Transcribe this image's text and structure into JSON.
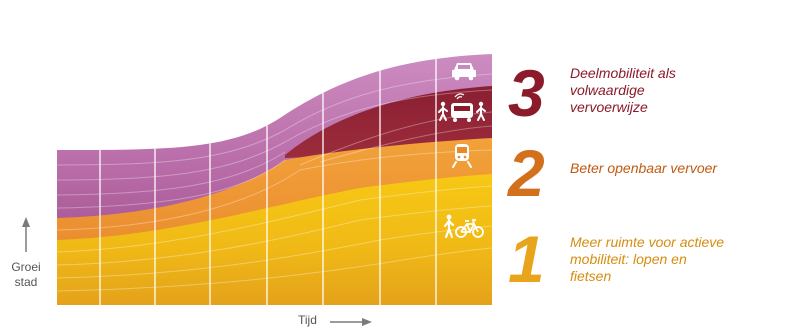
{
  "axes": {
    "y_label_line1": "Groei",
    "y_label_line2": "stad",
    "x_label": "Tijd"
  },
  "legend": [
    {
      "number": "3",
      "lines": [
        "Deelmobiliteit als",
        "volwaardige",
        "vervoerwijze"
      ],
      "color": "#8b1a2a"
    },
    {
      "number": "2",
      "lines": [
        "Beter openbaar vervoer"
      ],
      "color": "#d2701c"
    },
    {
      "number": "1",
      "lines": [
        "Meer ruimte voor actieve",
        "mobiliteit: lopen en",
        "fietsen"
      ],
      "color": "#e8a51c"
    }
  ],
  "layers": [
    {
      "name": "active-mobility",
      "color": "#f2bc14"
    },
    {
      "name": "public-transport",
      "color": "#ea8a26"
    },
    {
      "name": "shared-mobility",
      "color": "#93263b"
    },
    {
      "name": "car",
      "color": "#b35d9c"
    }
  ],
  "icons": [
    "car-icon",
    "pedestrian-icon",
    "bus-icon",
    "train-icon",
    "bicycle-icon"
  ]
}
